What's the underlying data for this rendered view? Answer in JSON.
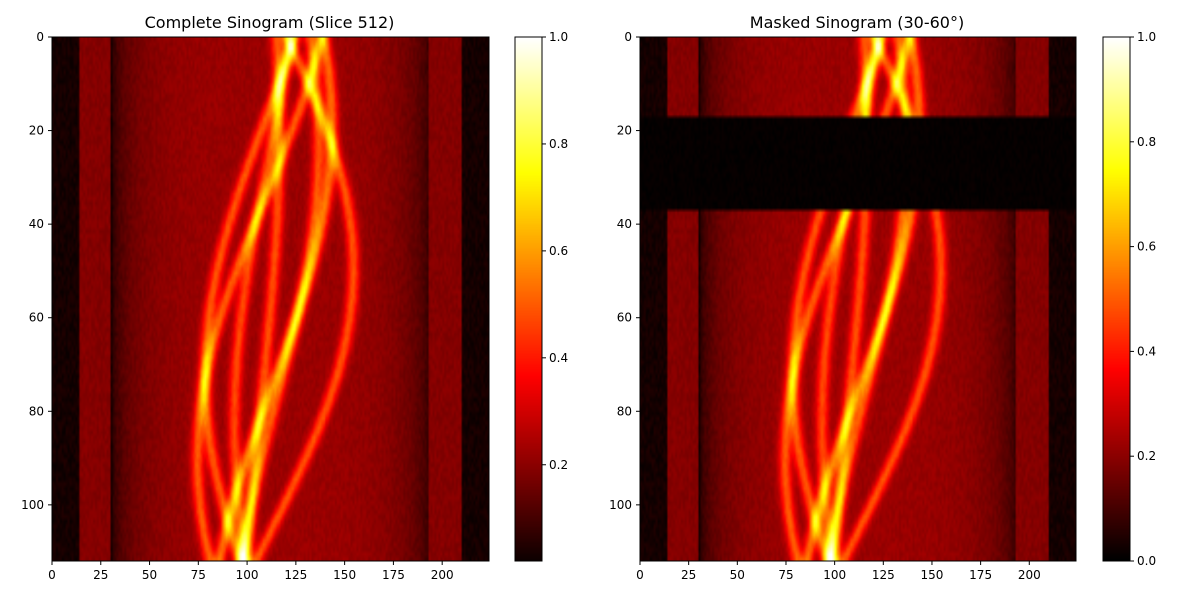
{
  "chart_data": [
    {
      "type": "heatmap",
      "title": "Complete Sinogram (Slice 512)",
      "xlabel": "",
      "ylabel": "",
      "colormap": "hot",
      "xlim": [
        0,
        224
      ],
      "ylim": [
        112,
        0
      ],
      "x_ticks": [
        0,
        25,
        50,
        75,
        100,
        125,
        150,
        175,
        200
      ],
      "y_ticks": [
        0,
        20,
        40,
        60,
        80,
        100
      ],
      "colorbar": {
        "range": [
          0.02,
          1.0
        ],
        "ticks": [
          0.2,
          0.4,
          0.6,
          0.8,
          1.0
        ],
        "tick_labels": [
          "0.2",
          "0.4",
          "0.6",
          "0.8",
          "1.0"
        ]
      },
      "mask": null
    },
    {
      "type": "heatmap",
      "title": "Masked Sinogram (30-60°)",
      "xlabel": "",
      "ylabel": "",
      "colormap": "hot",
      "xlim": [
        0,
        224
      ],
      "ylim": [
        112,
        0
      ],
      "x_ticks": [
        0,
        25,
        50,
        75,
        100,
        125,
        150,
        175,
        200
      ],
      "y_ticks": [
        0,
        20,
        40,
        60,
        80,
        100
      ],
      "colorbar": {
        "range": [
          0.0,
          1.0
        ],
        "ticks": [
          0.0,
          0.2,
          0.4,
          0.6,
          0.8,
          1.0
        ],
        "tick_labels": [
          "0.0",
          "0.2",
          "0.4",
          "0.6",
          "0.8",
          "1.0"
        ]
      },
      "mask": {
        "row_start": 17.5,
        "row_end": 36.5,
        "value": 0.0
      }
    }
  ],
  "sinogram_model": {
    "n_angles": 112,
    "n_detectors": 224,
    "background": {
      "cylinder_center": 112,
      "cylinder_radius": 82,
      "cylinder_level": 0.22,
      "dark_edge_level": 0.03
    },
    "stripes": [
      {
        "from": 14,
        "to": 30,
        "level": 0.19
      },
      {
        "from": 193,
        "to": 210,
        "level": 0.19
      }
    ],
    "curves": [
      {
        "center": 109,
        "amplitude": 35,
        "phase": 2.2,
        "intensity": 0.28
      },
      {
        "center": 112,
        "amplitude": 31,
        "phase": 1.05,
        "intensity": 0.3
      },
      {
        "center": 110,
        "amplitude": 32,
        "phase": 2.7,
        "intensity": 0.27
      },
      {
        "center": 114,
        "amplitude": 22,
        "phase": 0.95,
        "intensity": 0.26
      },
      {
        "center": 110,
        "amplitude": 17,
        "phase": 2.4,
        "intensity": 0.25
      },
      {
        "center": 112,
        "amplitude": 42,
        "phase": 0.2,
        "intensity": 0.27
      },
      {
        "center": 107,
        "amplitude": 9,
        "phase": 1.0,
        "intensity": 0.26
      }
    ],
    "curve_width": 3.2
  }
}
